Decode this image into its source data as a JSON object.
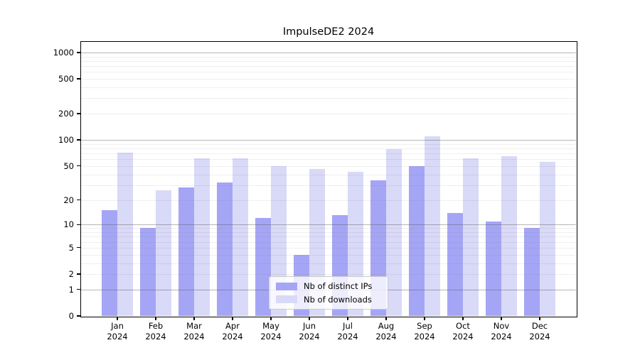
{
  "chart_data": {
    "type": "bar",
    "title": "ImpulseDE2 2024",
    "categories": [
      "Jan 2024",
      "Feb 2024",
      "Mar 2024",
      "Apr 2024",
      "May 2024",
      "Jun 2024",
      "Jul 2024",
      "Aug 2024",
      "Sep 2024",
      "Oct 2024",
      "Nov 2024",
      "Dec 2024"
    ],
    "series": [
      {
        "name": "Nb of distinct IPs",
        "color": "#a5a5f6",
        "values": [
          15,
          9,
          28,
          32,
          12,
          4,
          13,
          34,
          50,
          14,
          11,
          9
        ]
      },
      {
        "name": "Nb of downloads",
        "color": "#d9d9f8",
        "values": [
          72,
          26,
          61,
          61,
          50,
          46,
          43,
          78,
          110,
          62,
          65,
          56
        ]
      }
    ],
    "xlabel": "",
    "ylabel": "",
    "yscale": "log10(1+x)",
    "ylim": [
      0,
      1320
    ],
    "yticks": [
      0,
      1,
      2,
      5,
      10,
      20,
      50,
      100,
      200,
      500,
      1000
    ],
    "grid": "on",
    "legend_position": "lower center"
  },
  "colors": {
    "background": "#ffffff",
    "spine": "#000000",
    "major_grid": "#a8a8a8",
    "minor_grid": "#e9e9e9",
    "legend_border": "#cccccc"
  }
}
